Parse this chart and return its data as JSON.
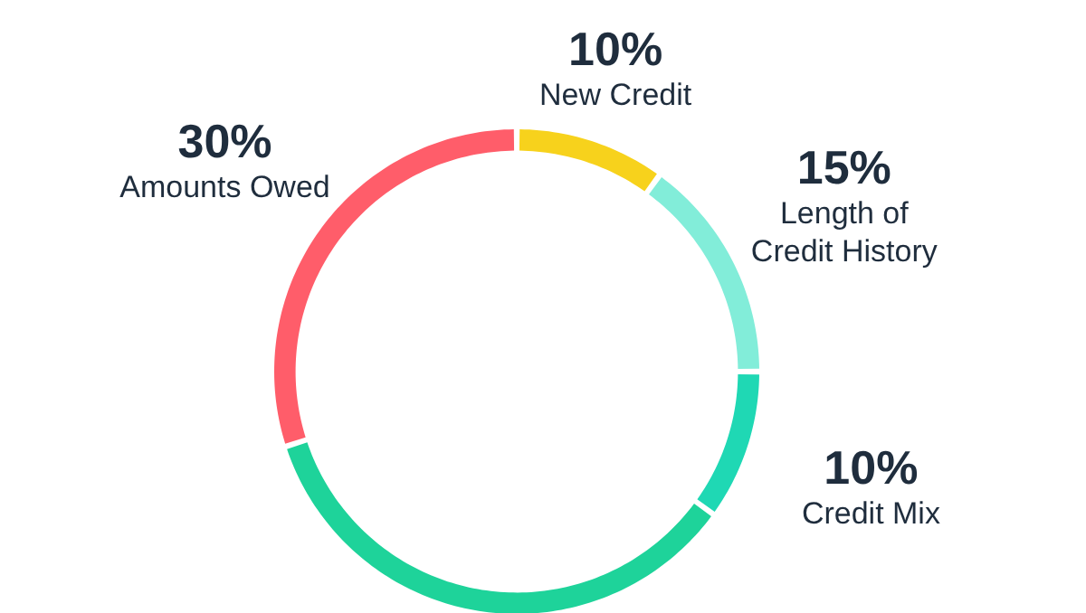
{
  "chart_data": {
    "type": "donut",
    "categories": [
      "New Credit",
      "Length of Credit History",
      "Credit Mix",
      null,
      "Amounts Owed"
    ],
    "values": [
      10,
      15,
      10,
      35,
      30
    ],
    "colors": [
      "#f7d21c",
      "#82edd9",
      "#1fd8b4",
      "#1ed39a",
      "#ff5d6a"
    ],
    "value_labels": [
      "10%",
      "15%",
      "10%",
      null,
      "30%"
    ]
  }
}
